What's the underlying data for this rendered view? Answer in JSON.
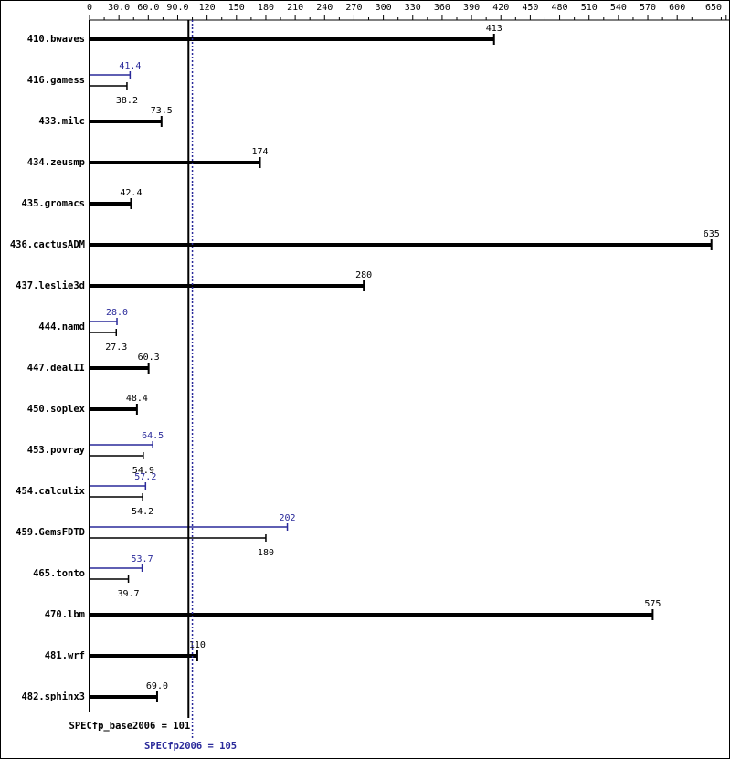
{
  "chart_data": {
    "type": "bar",
    "categories": [
      "410.bwaves",
      "416.gamess",
      "433.milc",
      "434.zeusmp",
      "435.gromacs",
      "436.cactusADM",
      "437.leslie3d",
      "444.namd",
      "447.dealII",
      "450.soplex",
      "453.povray",
      "454.calculix",
      "459.GemsFDTD",
      "465.tonto",
      "470.lbm",
      "481.wrf",
      "482.sphinx3"
    ],
    "series": [
      {
        "color": "#000000",
        "values": [
          413,
          38.2,
          73.5,
          174,
          42.4,
          635,
          280,
          27.3,
          60.3,
          48.4,
          54.9,
          54.2,
          180,
          39.7,
          575,
          110,
          69.0
        ],
        "value_labels": [
          "413",
          "38.2",
          "73.5",
          "174",
          "42.4",
          "635",
          "280",
          "27.3",
          "60.3",
          "48.4",
          "54.9",
          "54.2",
          "180",
          "39.7",
          "575",
          "110",
          "69.0"
        ]
      },
      {
        "color": "#2a2a9a",
        "values": [
          null,
          41.4,
          null,
          null,
          null,
          null,
          null,
          28.0,
          null,
          null,
          64.5,
          57.2,
          202,
          53.7,
          null,
          null,
          null
        ],
        "value_labels": [
          null,
          "41.4",
          null,
          null,
          null,
          null,
          null,
          "28.0",
          null,
          null,
          "64.5",
          "57.2",
          "202",
          "53.7",
          null,
          null,
          null
        ]
      }
    ],
    "xlim": [
      0,
      650
    ],
    "xticks": [
      0,
      {
        "value": 30,
        "label": "30.0"
      },
      {
        "value": 60,
        "label": "60.0"
      },
      {
        "value": 90,
        "label": "90.0"
      },
      120,
      150,
      180,
      210,
      240,
      270,
      300,
      330,
      360,
      390,
      420,
      450,
      480,
      510,
      540,
      570,
      600,
      650
    ],
    "base_metric": {
      "label": "SPECfp_base2006 = 101",
      "value": 101
    },
    "peak_metric": {
      "label": "SPECfp2006 = 105",
      "value": 105
    }
  }
}
